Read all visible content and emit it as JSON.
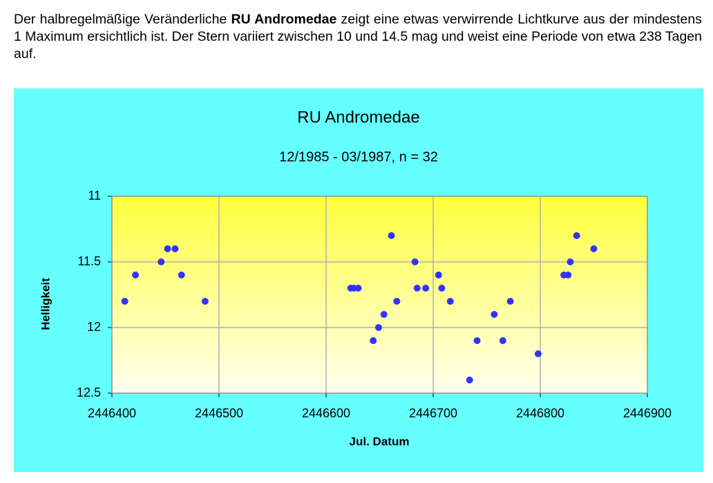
{
  "paragraph": {
    "before": "Der halbregelmäßige Veränderliche",
    "bold": "RU Andromedae",
    "after": "zeigt eine etwas verwirrende Lichtkurve aus der mindestens 1 Maximum ersichtlich ist. Der Stern variiert zwischen 10 und 14.5 mag und weist eine Periode von etwa 238 Tagen auf."
  },
  "chart_data": {
    "type": "scatter",
    "title": "RU Andromedae",
    "subtitle": "12/1985 - 03/1987, n = 32",
    "x_label": "Jul. Datum",
    "y_label": "Helligkeit",
    "x": [
      2446412,
      2446422,
      2446446,
      2446452,
      2446459,
      2446465,
      2446487,
      2446623,
      2446626,
      2446630,
      2446644,
      2446649,
      2446654,
      2446661,
      2446666,
      2446683,
      2446685,
      2446693,
      2446705,
      2446708,
      2446716,
      2446734,
      2446741,
      2446757,
      2446765,
      2446772,
      2446798,
      2446822,
      2446826,
      2446828,
      2446834,
      2446850
    ],
    "values": [
      11.8,
      11.6,
      11.5,
      11.4,
      11.4,
      11.6,
      11.8,
      11.7,
      11.7,
      11.7,
      12.1,
      12.0,
      11.9,
      11.3,
      11.8,
      11.5,
      11.7,
      11.7,
      11.6,
      11.7,
      11.8,
      12.4,
      12.1,
      11.9,
      12.1,
      11.8,
      12.2,
      11.6,
      11.6,
      11.5,
      11.3,
      11.4
    ],
    "color": "#3333ff",
    "xlim": [
      2446400,
      2446900
    ],
    "xticks": [
      2446400,
      2446500,
      2446600,
      2446700,
      2446800,
      2446900
    ],
    "ylim": [
      12.5,
      11
    ],
    "yticks": [
      11,
      11.5,
      12,
      12.5
    ],
    "grid": true
  }
}
